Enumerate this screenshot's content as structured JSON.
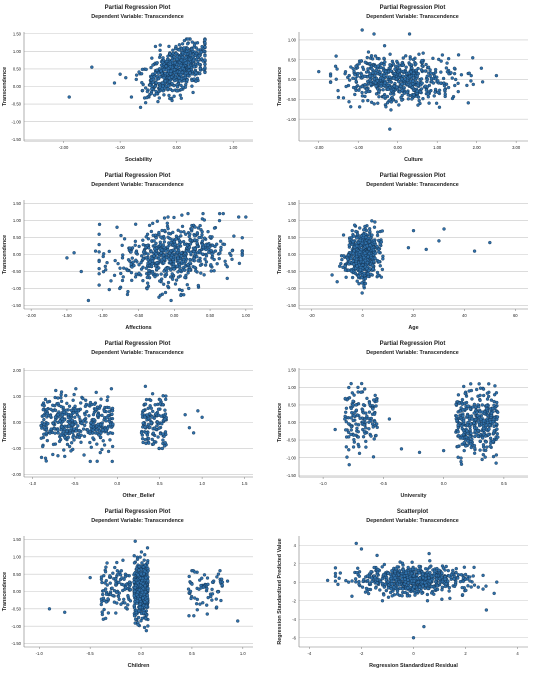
{
  "theme": {
    "point_fill": "#2f6fa8",
    "point_stroke": "#0f2a45",
    "grid": "#c8c8c8",
    "axis": "#7a7a7a",
    "text": "#222222"
  },
  "chart_data": [
    {
      "id": "p1",
      "type": "scatter",
      "title": "Partial Regression Plot",
      "subtitle": "Dependent Variable: Transcendence",
      "xlabel": "Sociability",
      "ylabel": "Transcendence",
      "xticks": [
        "-2.00",
        "-1.00",
        "0.00",
        "1.00"
      ],
      "xtick_values": [
        -2,
        -1,
        0,
        1
      ],
      "xlim": [
        -2.7,
        1.35
      ],
      "yticks": [
        "1.50",
        "1.00",
        "0.50",
        "0.00",
        "-0.50",
        "-1.00",
        "-1.50"
      ],
      "ytick_values": [
        1.5,
        1,
        0.5,
        0,
        -0.5,
        -1,
        -1.5
      ],
      "ylim": [
        -1.55,
        1.55
      ],
      "grid": true,
      "cloud": {
        "n": 620,
        "cx": 0.0,
        "sx": 0.26,
        "cy": 0.5,
        "sy": 0.38,
        "rho": 0.55,
        "xmin": -1.4,
        "xmax": 0.5,
        "ymin": -1.1,
        "ymax": 1.35
      },
      "points": [
        [
          -1.5,
          0.55
        ],
        [
          -1.0,
          0.35
        ],
        [
          -0.9,
          0.25
        ],
        [
          -1.9,
          -0.3
        ],
        [
          -0.8,
          -0.3
        ],
        [
          -1.1,
          0.1
        ]
      ]
    },
    {
      "id": "p2",
      "type": "scatter",
      "title": "Partial Regression Plot",
      "subtitle": "Dependent Variable: Transcendence",
      "xlabel": "Culture",
      "ylabel": "Transcendence",
      "xticks": [
        "-2.00",
        "-1.00",
        "0.00",
        "1.00",
        "2.00",
        "3.00"
      ],
      "xtick_values": [
        -2,
        -1,
        0,
        1,
        2,
        3
      ],
      "xlim": [
        -2.5,
        3.3
      ],
      "yticks": [
        "1.00",
        "0.50",
        "0.00",
        "-0.50",
        "-1.00"
      ],
      "ytick_values": [
        1,
        0.5,
        0,
        -0.5,
        -1
      ],
      "ylim": [
        -1.55,
        1.2
      ],
      "grid": true,
      "cloud": {
        "n": 600,
        "cx": 0.0,
        "sx": 0.72,
        "cy": 0.0,
        "sy": 0.3,
        "rho": 0.0,
        "xmin": -1.7,
        "xmax": 2.2,
        "ymin": -1.0,
        "ymax": 1.0
      },
      "points": [
        [
          -0.9,
          1.25
        ],
        [
          -0.6,
          1.15
        ],
        [
          -2.0,
          0.2
        ],
        [
          -1.5,
          -0.45
        ],
        [
          2.5,
          0.1
        ],
        [
          1.9,
          0.55
        ],
        [
          -0.2,
          -1.25
        ],
        [
          0.3,
          1.15
        ]
      ]
    },
    {
      "id": "p3",
      "type": "scatter",
      "title": "Partial Regression Plot",
      "subtitle": "Dependent Variable: Transcendence",
      "xlabel": "Affections",
      "ylabel": "Transcendence",
      "xticks": [
        "-2.00",
        "-1.50",
        "-1.00",
        "-0.50",
        "0.00",
        "0.50",
        "1.00"
      ],
      "xtick_values": [
        -2,
        -1.5,
        -1,
        -0.5,
        0,
        0.5,
        1
      ],
      "xlim": [
        -2.1,
        1.1
      ],
      "yticks": [
        "1.50",
        "1.00",
        "0.50",
        "0.00",
        "-0.50",
        "-1.00",
        "-1.50"
      ],
      "ytick_values": [
        1.5,
        1,
        0.5,
        0,
        -0.5,
        -1,
        -1.5
      ],
      "ylim": [
        -1.6,
        1.6
      ],
      "grid": true,
      "cloud": {
        "n": 620,
        "cx": 0.0,
        "sx": 0.4,
        "cy": 0.0,
        "sy": 0.45,
        "rho": 0.22,
        "xmin": -1.05,
        "xmax": 0.95,
        "ymin": -1.35,
        "ymax": 1.2
      },
      "points": [
        [
          -1.5,
          -0.1
        ],
        [
          -1.4,
          0.05
        ],
        [
          -1.3,
          -0.5
        ],
        [
          -1.2,
          -1.35
        ],
        [
          0.9,
          1.1
        ],
        [
          1.0,
          1.1
        ],
        [
          -0.8,
          0.8
        ],
        [
          -1.1,
          0.1
        ]
      ]
    },
    {
      "id": "p4",
      "type": "scatter",
      "title": "Partial Regression Plot",
      "subtitle": "Dependent Variable: Transcendence",
      "xlabel": "Age",
      "ylabel": "Transcendence",
      "xticks": [
        "-20",
        "0",
        "20",
        "40",
        "60"
      ],
      "xtick_values": [
        -20,
        0,
        20,
        40,
        60
      ],
      "xlim": [
        -25,
        65
      ],
      "yticks": [
        "1.50",
        "1.00",
        "0.50",
        "0.00",
        "-0.50",
        "-1.00",
        "-1.50"
      ],
      "ytick_values": [
        1.5,
        1,
        0.5,
        0,
        -0.5,
        -1,
        -1.5
      ],
      "ylim": [
        -1.6,
        1.6
      ],
      "grid": true,
      "cloud": {
        "n": 560,
        "cx": 0.0,
        "sx": 3.2,
        "cy": 0.0,
        "sy": 0.35,
        "rho": 0.15,
        "xmin": -9,
        "xmax": 14,
        "ymin": -1.3,
        "ymax": 1.3
      },
      "points": [
        [
          20,
          0.7
        ],
        [
          25,
          0.15
        ],
        [
          30,
          0.4
        ],
        [
          32,
          0.75
        ],
        [
          44,
          0.1
        ],
        [
          50,
          0.35
        ],
        [
          18,
          0.2
        ],
        [
          -10,
          -0.8
        ],
        [
          -12,
          -0.6
        ]
      ]
    },
    {
      "id": "p5",
      "type": "scatter",
      "title": "Partial Regression Plot",
      "subtitle": "Dependent Variable: Transcendence",
      "xlabel": "Other_Belief",
      "ylabel": "Transcendence",
      "xticks": [
        "-1.0",
        "-0.5",
        "0.0",
        "0.5",
        "1.0",
        "1.5"
      ],
      "xtick_values": [
        -1,
        -0.5,
        0,
        0.5,
        1,
        1.5
      ],
      "xlim": [
        -1.1,
        1.6
      ],
      "yticks": [
        "2.00",
        "1.00",
        "0.00",
        "-1.00",
        "-2.00"
      ],
      "ytick_values": [
        2,
        1,
        0,
        -1,
        -2
      ],
      "ylim": [
        -2.1,
        2.1
      ],
      "grid": true,
      "clusters": [
        {
          "n": 380,
          "xmin": -0.9,
          "xmax": -0.05,
          "cy": 0.0,
          "sy": 0.55,
          "ymin": -1.5,
          "ymax": 1.3
        },
        {
          "n": 140,
          "xmin": 0.28,
          "xmax": 0.58,
          "cy": 0.1,
          "sy": 0.55,
          "ymin": -1.0,
          "ymax": 1.4
        }
      ],
      "points": [
        [
          0.8,
          0.3
        ],
        [
          0.9,
          -0.4
        ],
        [
          1.0,
          0.2
        ],
        [
          0.85,
          -0.2
        ],
        [
          0.95,
          0.45
        ]
      ]
    },
    {
      "id": "p6",
      "type": "scatter",
      "title": "Partial Regression Plot",
      "subtitle": "Dependent Variable: Transcendence",
      "xlabel": "University",
      "ylabel": "Transcendence",
      "xticks": [
        "-1.0",
        "-0.5",
        "0.0",
        "0.5"
      ],
      "xtick_values": [
        -1,
        -0.5,
        0,
        0.5
      ],
      "xlim": [
        -1.2,
        0.7
      ],
      "yticks": [
        "1.50",
        "1.00",
        "0.50",
        "0.00",
        "-0.50",
        "-1.00",
        "-1.50"
      ],
      "ytick_values": [
        1.5,
        1,
        0.5,
        0,
        -0.5,
        -1,
        -1.5
      ],
      "ylim": [
        -1.55,
        1.55
      ],
      "grid": true,
      "clusters": [
        {
          "n": 150,
          "xmin": -0.82,
          "xmax": -0.55,
          "cy": 0.1,
          "sy": 0.45,
          "ymin": -1.2,
          "ymax": 1.3
        },
        {
          "n": 360,
          "xmin": 0.1,
          "xmax": 0.45,
          "cy": 0.0,
          "sy": 0.45,
          "ymin": -1.35,
          "ymax": 1.1
        }
      ],
      "points": [
        [
          -0.35,
          -0.75
        ],
        [
          -0.2,
          -0.85
        ],
        [
          -0.45,
          0.1
        ],
        [
          -0.9,
          -0.2
        ],
        [
          0.0,
          -0.8
        ]
      ]
    },
    {
      "id": "p7",
      "type": "scatter",
      "title": "Partial Regression Plot",
      "subtitle": "Dependent Variable: Transcendence",
      "xlabel": "Children",
      "ylabel": "Transcendence",
      "xticks": [
        "-1.0",
        "-0.5",
        "0.0",
        "0.5",
        "1.0"
      ],
      "xtick_values": [
        -1,
        -0.5,
        0,
        0.5,
        1
      ],
      "xlim": [
        -1.15,
        1.1
      ],
      "yticks": [
        "1.50",
        "1.00",
        "0.50",
        "0.00",
        "-0.50",
        "-1.00",
        "-1.50"
      ],
      "ytick_values": [
        1.5,
        1,
        0.5,
        0,
        -0.5,
        -1,
        -1.5
      ],
      "ylim": [
        -1.6,
        1.6
      ],
      "grid": true,
      "clusters": [
        {
          "n": 420,
          "xmin": -0.07,
          "xmax": 0.07,
          "cy": 0.0,
          "sy": 0.45,
          "ymin": -1.35,
          "ymax": 1.45
        },
        {
          "n": 110,
          "xmin": -0.4,
          "xmax": -0.1,
          "cy": 0.1,
          "sy": 0.35,
          "ymin": -0.8,
          "ymax": 0.9
        },
        {
          "n": 70,
          "xmin": 0.45,
          "xmax": 0.8,
          "cy": 0.0,
          "sy": 0.35,
          "ymin": -0.7,
          "ymax": 0.6
        }
      ],
      "points": [
        [
          -0.9,
          -0.5
        ],
        [
          -0.75,
          -0.6
        ],
        [
          -0.5,
          0.4
        ],
        [
          0.95,
          -0.85
        ],
        [
          0.85,
          0.3
        ]
      ]
    },
    {
      "id": "p8",
      "type": "scatter",
      "title": "Scatterplot",
      "subtitle": "Dependent Variable: Transcendence",
      "xlabel": "Regression Standardized Residual",
      "ylabel": "Regression Standardized Predicted Value",
      "xticks": [
        "-4",
        "-2",
        "0",
        "2",
        "4"
      ],
      "xtick_values": [
        -4,
        -2,
        0,
        2,
        4
      ],
      "xlim": [
        -4.4,
        4.4
      ],
      "yticks": [
        "4",
        "2",
        "0",
        "-2",
        "-4",
        "-6"
      ],
      "ytick_values": [
        4,
        2,
        0,
        -2,
        -4,
        -6
      ],
      "ylim": [
        -7,
        5
      ],
      "grid": true,
      "cloud": {
        "n": 650,
        "cx": 0.0,
        "sx": 1.05,
        "cy": 0.2,
        "sy": 0.75,
        "rho": 0.0,
        "xmin": -3.0,
        "xmax": 3.2,
        "ymin": -2.0,
        "ymax": 3.0
      },
      "points": [
        [
          -2.2,
          4.2
        ],
        [
          -2.0,
          3.6
        ],
        [
          -1.4,
          2.9
        ],
        [
          0.4,
          -4.8
        ],
        [
          0.0,
          -6.0
        ],
        [
          2.8,
          -3.0
        ],
        [
          3.1,
          -1.2
        ],
        [
          -3.3,
          0.2
        ],
        [
          0.6,
          3.1
        ]
      ]
    }
  ]
}
